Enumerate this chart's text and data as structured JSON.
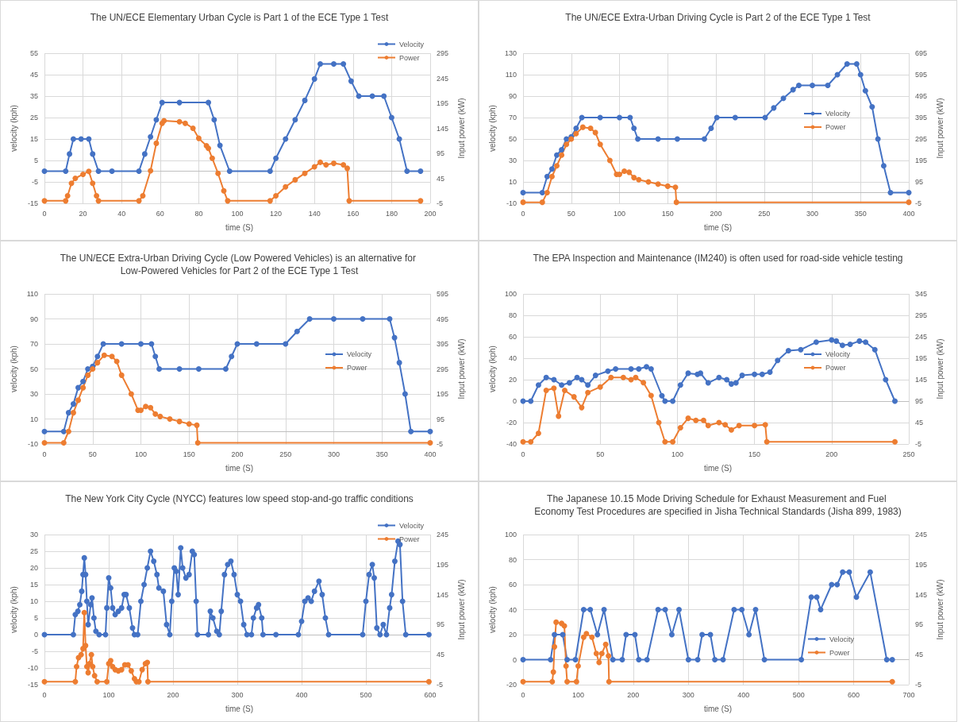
{
  "chart_data": [
    {
      "type": "line",
      "title": "The UN/ECE Elementary Urban Cycle is Part 1 of the ECE Type 1 Test",
      "xlabel": "time (S)",
      "ylabel": "velocity (kph)",
      "y2label": "Input power (kW)",
      "xlim": [
        0,
        200
      ],
      "xticks": [
        0,
        20,
        40,
        60,
        80,
        100,
        120,
        140,
        160,
        180,
        200
      ],
      "ylim": [
        -15,
        55
      ],
      "yticks": [
        -15,
        -5,
        5,
        15,
        25,
        35,
        45,
        55
      ],
      "y2lim": [
        -5,
        295
      ],
      "y2ticks": [
        -5,
        45,
        95,
        145,
        195,
        245,
        295
      ],
      "grid": true,
      "legend": "top right",
      "marker": "circle",
      "series": [
        {
          "name": "Velocity",
          "color": "#4472c4",
          "x": [
            0,
            11,
            13,
            15,
            19,
            23,
            25,
            28,
            35,
            49,
            52,
            55,
            58,
            61,
            70,
            85,
            88,
            91,
            96,
            117,
            120,
            125,
            130,
            135,
            140,
            143,
            150,
            155,
            159,
            163,
            170,
            176,
            180,
            184,
            188,
            195
          ],
          "values": [
            0,
            0,
            8,
            15,
            15,
            15,
            8,
            0,
            0,
            0,
            8,
            16,
            24,
            32,
            32,
            32,
            24,
            12,
            0,
            0,
            6,
            15,
            24,
            33,
            43,
            50,
            50,
            50,
            42,
            35,
            35,
            35,
            25,
            15,
            0,
            0
          ]
        },
        {
          "name": "Power",
          "color": "#ed7d31",
          "axis": "y2",
          "x": [
            0,
            11,
            12,
            14,
            16,
            20,
            23,
            25,
            27,
            28,
            49,
            51,
            55,
            58,
            61,
            62,
            70,
            73,
            77,
            80,
            84,
            85,
            87,
            90,
            93,
            95,
            117,
            120,
            125,
            130,
            135,
            140,
            143,
            146,
            150,
            155,
            157,
            158,
            195
          ],
          "values": [
            0,
            0,
            10,
            35,
            45,
            53,
            59,
            35,
            10,
            0,
            0,
            10,
            60,
            115,
            155,
            160,
            158,
            155,
            145,
            125,
            110,
            105,
            85,
            55,
            20,
            0,
            0,
            10,
            28,
            42,
            55,
            68,
            77,
            72,
            75,
            72,
            65,
            0,
            0
          ]
        }
      ]
    },
    {
      "type": "line",
      "title": "The UN/ECE Extra-Urban Driving Cycle is Part 2 of the ECE Type 1 Test",
      "xlabel": "time (S)",
      "ylabel": "velocity (kph)",
      "y2label": "Input power (kW)",
      "xlim": [
        0,
        400
      ],
      "xticks": [
        0,
        50,
        100,
        150,
        200,
        250,
        300,
        350,
        400
      ],
      "ylim": [
        -10,
        130
      ],
      "yticks": [
        -10,
        10,
        30,
        50,
        70,
        90,
        110,
        130
      ],
      "y2lim": [
        -5,
        695
      ],
      "y2ticks": [
        -5,
        95,
        195,
        295,
        395,
        495,
        595,
        695
      ],
      "grid": true,
      "legend": "right",
      "marker": "circle",
      "series": [
        {
          "name": "Velocity",
          "color": "#4472c4",
          "x": [
            0,
            20,
            25,
            30,
            35,
            40,
            45,
            50,
            55,
            61,
            80,
            100,
            111,
            115,
            119,
            140,
            160,
            188,
            195,
            201,
            220,
            251,
            260,
            270,
            280,
            286,
            300,
            316,
            326,
            336,
            346,
            350,
            355,
            362,
            368,
            374,
            381,
            400
          ],
          "values": [
            0,
            0,
            15,
            22,
            35,
            40,
            50,
            52,
            60,
            70,
            70,
            70,
            70,
            60,
            50,
            50,
            50,
            50,
            60,
            70,
            70,
            70,
            79,
            88,
            96,
            100,
            100,
            100,
            110,
            120,
            120,
            110,
            95,
            80,
            50,
            25,
            0,
            0
          ]
        },
        {
          "name": "Power",
          "color": "#ed7d31",
          "axis": "y2",
          "x": [
            0,
            20,
            25,
            30,
            35,
            40,
            45,
            50,
            55,
            62,
            70,
            75,
            80,
            90,
            97,
            100,
            105,
            110,
            115,
            120,
            130,
            140,
            150,
            158,
            159,
            400
          ],
          "values": [
            0,
            0,
            45,
            120,
            170,
            220,
            270,
            295,
            320,
            350,
            345,
            325,
            270,
            195,
            130,
            130,
            145,
            140,
            115,
            105,
            95,
            85,
            75,
            70,
            0,
            0
          ]
        }
      ]
    },
    {
      "type": "line",
      "title": "The UN/ECE Extra-Urban Driving Cycle (Low Powered Vehicles) is an alternative for Low-Powered Vehicles for Part 2 of the ECE Type 1 Test",
      "xlabel": "time (S)",
      "ylabel": "velocity (kph)",
      "y2label": "Input power (kW)",
      "xlim": [
        0,
        400
      ],
      "xticks": [
        0,
        50,
        100,
        150,
        200,
        250,
        300,
        350,
        400
      ],
      "ylim": [
        -10,
        110
      ],
      "yticks": [
        -10,
        10,
        30,
        50,
        70,
        90,
        110
      ],
      "y2lim": [
        -5,
        595
      ],
      "y2ticks": [
        -5,
        95,
        195,
        295,
        395,
        495,
        595
      ],
      "grid": true,
      "legend": "right",
      "marker": "circle",
      "series": [
        {
          "name": "Velocity",
          "color": "#4472c4",
          "x": [
            0,
            20,
            25,
            30,
            35,
            40,
            45,
            50,
            55,
            61,
            80,
            100,
            111,
            115,
            119,
            140,
            160,
            188,
            194,
            200,
            220,
            250,
            262,
            275,
            300,
            330,
            358,
            363,
            368,
            374,
            380,
            400
          ],
          "values": [
            0,
            0,
            15,
            22,
            35,
            40,
            50,
            52,
            60,
            70,
            70,
            70,
            70,
            60,
            50,
            50,
            50,
            50,
            60,
            70,
            70,
            70,
            80,
            90,
            90,
            90,
            90,
            75,
            55,
            30,
            0,
            0
          ]
        },
        {
          "name": "Power",
          "color": "#ed7d31",
          "axis": "y2",
          "x": [
            0,
            20,
            25,
            30,
            35,
            40,
            45,
            50,
            55,
            62,
            70,
            75,
            80,
            90,
            97,
            100,
            105,
            110,
            115,
            120,
            130,
            140,
            150,
            158,
            159,
            400
          ],
          "values": [
            0,
            0,
            45,
            120,
            170,
            220,
            270,
            295,
            320,
            350,
            345,
            325,
            270,
            195,
            130,
            130,
            145,
            140,
            115,
            105,
            95,
            85,
            75,
            70,
            0,
            0
          ]
        }
      ]
    },
    {
      "type": "line",
      "title": "The EPA Inspection and Maintenance (IM240) is often used for road-side vehicle testing",
      "xlabel": "time (S)",
      "ylabel": "velocity (kph)",
      "y2label": "Input power (kW)",
      "xlim": [
        0,
        250
      ],
      "xticks": [
        0,
        50,
        100,
        150,
        200,
        250
      ],
      "ylim": [
        -40,
        100
      ],
      "yticks": [
        -40,
        -20,
        0,
        20,
        40,
        60,
        80,
        100
      ],
      "y2lim": [
        -5,
        345
      ],
      "y2ticks": [
        -5,
        45,
        95,
        145,
        195,
        245,
        295,
        345
      ],
      "grid": true,
      "legend": "right",
      "marker": "circle",
      "series": [
        {
          "name": "Velocity",
          "color": "#4472c4",
          "x": [
            0,
            5,
            10,
            15,
            20,
            25,
            30,
            35,
            38,
            42,
            47,
            55,
            60,
            70,
            75,
            80,
            83,
            90,
            92,
            97,
            102,
            107,
            113,
            115,
            120,
            127,
            132,
            135,
            138,
            142,
            150,
            155,
            160,
            165,
            172,
            180,
            190,
            200,
            203,
            207,
            212,
            218,
            222,
            228,
            235,
            241
          ],
          "values": [
            0,
            0,
            15,
            22,
            20,
            15,
            17,
            22,
            20,
            15,
            24,
            28,
            30,
            30,
            30,
            32,
            30,
            5,
            0,
            0,
            15,
            26,
            25,
            26,
            17,
            22,
            20,
            16,
            17,
            24,
            25,
            25,
            27,
            38,
            47,
            48,
            55,
            57,
            56,
            52,
            53,
            56,
            55,
            48,
            20,
            0
          ]
        },
        {
          "name": "Power",
          "color": "#ed7d31",
          "axis": "y2",
          "x": [
            0,
            5,
            10,
            15,
            20,
            23,
            27,
            33,
            38,
            42,
            50,
            57,
            65,
            70,
            73,
            78,
            83,
            88,
            92,
            97,
            102,
            107,
            112,
            117,
            120,
            127,
            131,
            135,
            140,
            150,
            157,
            158,
            241
          ],
          "values": [
            0,
            0,
            20,
            120,
            125,
            60,
            120,
            105,
            80,
            115,
            128,
            150,
            150,
            145,
            150,
            138,
            108,
            45,
            0,
            0,
            33,
            55,
            50,
            50,
            38,
            45,
            40,
            28,
            38,
            38,
            40,
            0,
            0
          ]
        }
      ]
    },
    {
      "type": "line",
      "title": "The New York City Cycle (NYCC) features low speed stop-and-go traffic conditions",
      "xlabel": "time (S)",
      "ylabel": "velocity (kph)",
      "y2label": "Input power (kW)",
      "xlim": [
        0,
        600
      ],
      "xticks": [
        0,
        100,
        200,
        300,
        400,
        500,
        600
      ],
      "ylim": [
        -15,
        30
      ],
      "yticks": [
        -15,
        -10,
        -5,
        0,
        5,
        10,
        15,
        20,
        25,
        30
      ],
      "y2lim": [
        -5,
        245
      ],
      "y2ticks": [
        -5,
        45,
        95,
        145,
        195,
        245
      ],
      "grid": true,
      "legend": "top right",
      "marker": "circle",
      "series": [
        {
          "name": "Velocity",
          "color": "#4472c4",
          "x": [
            0,
            45,
            48,
            52,
            55,
            58,
            60,
            62,
            64,
            66,
            68,
            72,
            74,
            77,
            80,
            85,
            95,
            97,
            100,
            103,
            106,
            110,
            115,
            120,
            124,
            127,
            132,
            137,
            140,
            145,
            150,
            155,
            160,
            165,
            170,
            175,
            178,
            185,
            190,
            195,
            198,
            202,
            205,
            208,
            212,
            215,
            220,
            225,
            230,
            233,
            236,
            238,
            255,
            258,
            262,
            268,
            272,
            275,
            280,
            285,
            290,
            295,
            300,
            305,
            310,
            315,
            322,
            325,
            330,
            333,
            338,
            340,
            360,
            395,
            400,
            405,
            410,
            415,
            420,
            427,
            432,
            437,
            442,
            495,
            500,
            505,
            510,
            513,
            517,
            522,
            527,
            532,
            537,
            540,
            545,
            550,
            553,
            557,
            562,
            598
          ],
          "values": [
            0,
            0,
            6,
            7,
            9,
            13,
            18,
            23,
            18,
            10,
            3,
            9,
            11,
            5,
            1,
            0,
            0,
            8,
            17,
            14,
            8,
            6,
            7,
            8,
            12,
            12,
            8,
            2,
            0,
            0,
            10,
            15,
            20,
            25,
            22,
            18,
            14,
            13,
            3,
            0,
            10,
            20,
            19,
            12,
            26,
            20,
            17,
            18,
            25,
            24,
            10,
            0,
            0,
            7,
            5,
            1,
            0,
            7,
            18,
            21,
            22,
            18,
            12,
            10,
            3,
            0,
            0,
            5,
            8,
            9,
            5,
            0,
            0,
            0,
            4,
            10,
            11,
            10,
            13,
            16,
            12,
            5,
            0,
            0,
            10,
            18,
            21,
            17,
            2,
            0,
            3,
            0,
            8,
            12,
            22,
            28,
            27,
            10,
            0,
            0
          ]
        },
        {
          "name": "Power",
          "color": "#ed7d31",
          "axis": "y2",
          "x": [
            0,
            48,
            50,
            53,
            57,
            60,
            62,
            64,
            66,
            68,
            70,
            73,
            75,
            78,
            82,
            97,
            100,
            103,
            106,
            110,
            115,
            120,
            125,
            130,
            135,
            140,
            143,
            147,
            152,
            157,
            160,
            161,
            598
          ],
          "values": [
            0,
            0,
            25,
            40,
            45,
            55,
            115,
            60,
            25,
            15,
            30,
            45,
            25,
            10,
            0,
            0,
            30,
            35,
            25,
            20,
            18,
            20,
            28,
            28,
            18,
            5,
            0,
            0,
            20,
            30,
            32,
            0,
            0
          ]
        }
      ]
    },
    {
      "type": "line",
      "title": "The Japanese 10.15 Mode Driving Schedule for Exhaust Measurement and Fuel Economy Test Procedures are specified in Jisha Technical Standards (Jisha 899, 1983)",
      "xlabel": "time (S)",
      "ylabel": "velocity (kph)",
      "y2label": "Input power (kW)",
      "xlim": [
        0,
        700
      ],
      "xticks": [
        0,
        100,
        200,
        300,
        400,
        500,
        600,
        700
      ],
      "ylim": [
        -20,
        100
      ],
      "yticks": [
        -20,
        0,
        20,
        40,
        60,
        80,
        100
      ],
      "y2lim": [
        -5,
        245
      ],
      "y2ticks": [
        -5,
        45,
        95,
        145,
        195,
        245
      ],
      "grid": true,
      "legend": "bottom right",
      "marker": "circle",
      "series": [
        {
          "name": "Velocity",
          "color": "#4472c4",
          "x": [
            0,
            50,
            57,
            72,
            80,
            95,
            110,
            122,
            135,
            147,
            163,
            180,
            187,
            203,
            210,
            225,
            245,
            258,
            270,
            283,
            300,
            317,
            325,
            340,
            348,
            363,
            383,
            397,
            410,
            422,
            438,
            505,
            523,
            533,
            540,
            560,
            570,
            580,
            592,
            605,
            630,
            660,
            670
          ],
          "values": [
            0,
            0,
            20,
            20,
            0,
            0,
            40,
            40,
            20,
            40,
            0,
            0,
            20,
            20,
            0,
            0,
            40,
            40,
            20,
            40,
            0,
            0,
            20,
            20,
            0,
            0,
            40,
            40,
            20,
            40,
            0,
            0,
            50,
            50,
            40,
            60,
            60,
            70,
            70,
            50,
            70,
            0,
            0
          ]
        },
        {
          "name": "Power",
          "color": "#ed7d31",
          "axis": "y2",
          "x": [
            0,
            53,
            55,
            57,
            60,
            70,
            75,
            78,
            80,
            97,
            100,
            110,
            115,
            125,
            133,
            138,
            143,
            150,
            155,
            156,
            670
          ],
          "values": [
            0,
            0,
            16,
            58,
            99,
            97,
            93,
            26,
            0,
            0,
            26,
            74,
            80,
            74,
            47,
            32,
            47,
            62,
            43,
            0,
            0
          ]
        }
      ]
    }
  ]
}
